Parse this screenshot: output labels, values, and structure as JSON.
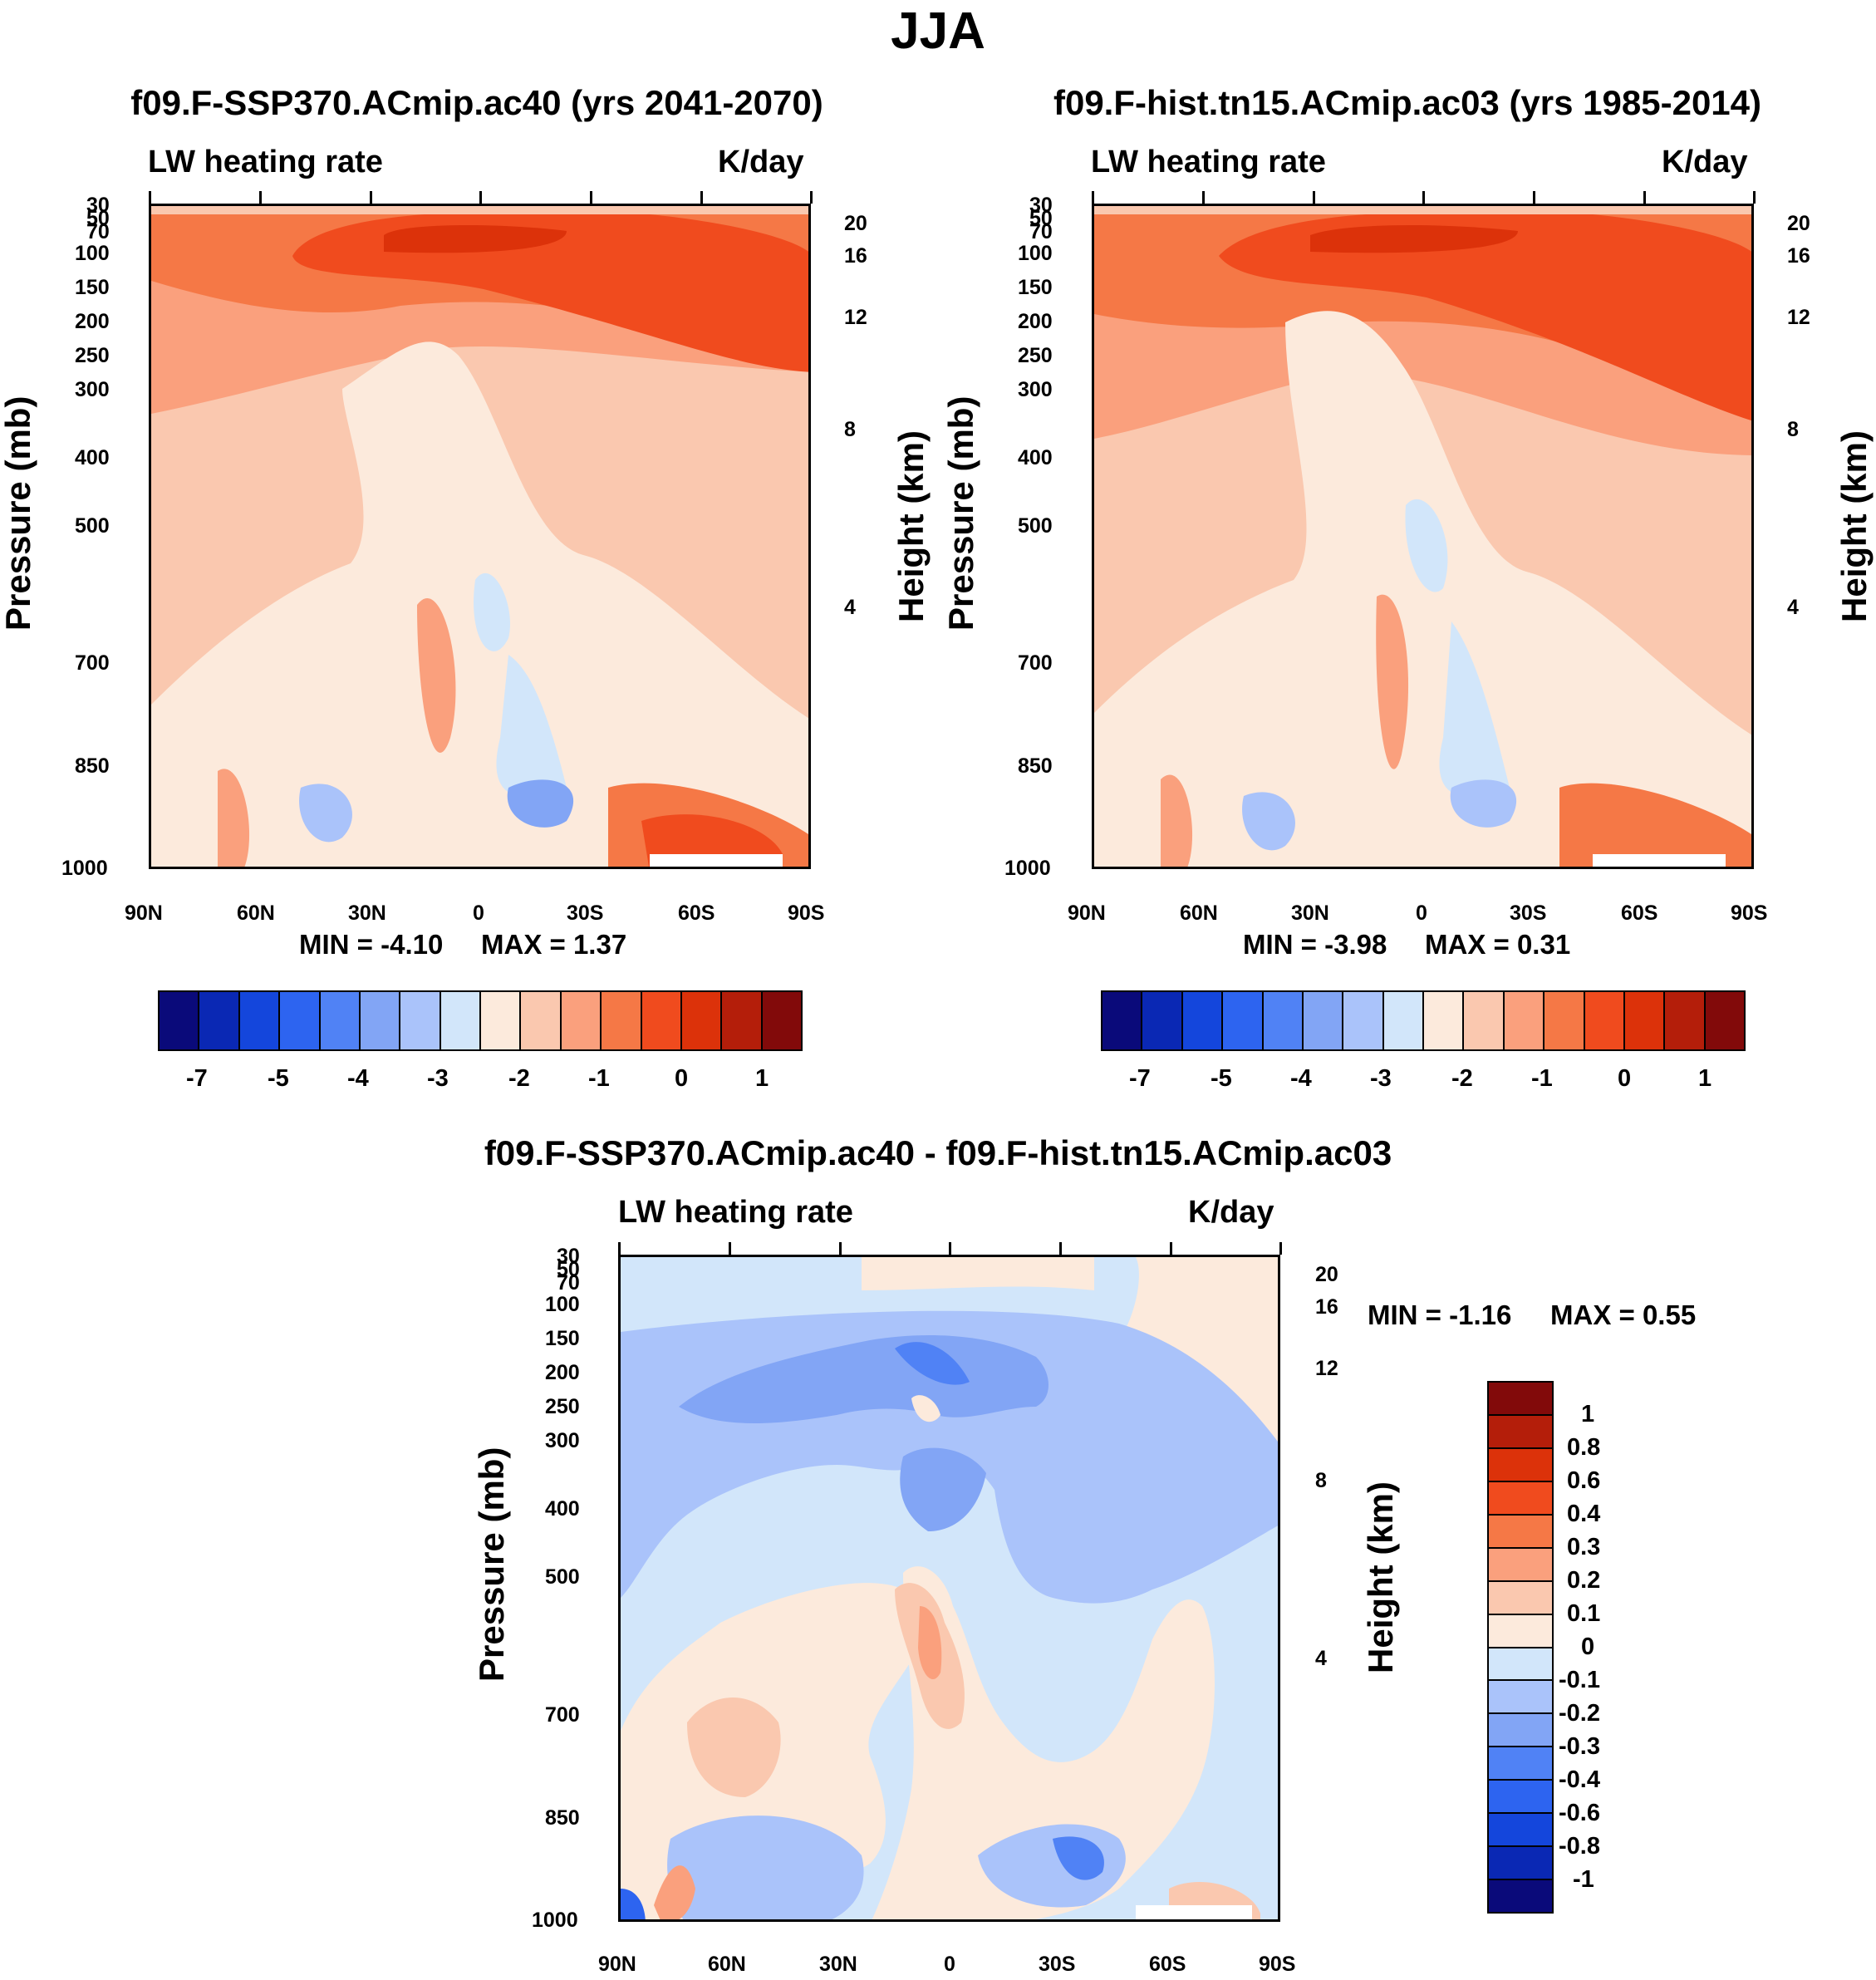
{
  "suptitle": "JJA",
  "colors": {
    "seq": [
      "#0a0a7a",
      "#0a28b4",
      "#1446dc",
      "#2d64f0",
      "#5082f5",
      "#82a5f5",
      "#aac3fa",
      "#d2e6fa",
      "#fceadc",
      "#fac8af",
      "#faa07d",
      "#f57846",
      "#f04b1e",
      "#dc320a",
      "#b41e0a",
      "#820a0a"
    ]
  },
  "chart_data": [
    {
      "type": "contour",
      "title": "f09.F-SSP370.ACmip.ac40 (yrs 2041-2070)",
      "left_label": "LW heating rate",
      "right_label": "K/day",
      "ylabel": "Pressure (mb)",
      "ylabel_right": "Height (km)",
      "x_ticks": [
        "90N",
        "60N",
        "30N",
        "0",
        "30S",
        "60S",
        "90S"
      ],
      "y_ticks": [
        "30",
        "50",
        "70",
        "100",
        "150",
        "200",
        "250",
        "300",
        "400",
        "500",
        "700",
        "850",
        "1000"
      ],
      "y_ticks_right": [
        "20",
        "16",
        "12",
        "8",
        "4"
      ],
      "min_label": "MIN =  -4.10",
      "max_label": "MAX =   1.37",
      "min": -4.1,
      "max": 1.37,
      "colorbar_labels": [
        "-7",
        "-5",
        "-4",
        "-3",
        "-2",
        "-1",
        "0",
        "1"
      ]
    },
    {
      "type": "contour",
      "title": "f09.F-hist.tn15.ACmip.ac03 (yrs 1985-2014)",
      "left_label": "LW heating rate",
      "right_label": "K/day",
      "ylabel": "Pressure (mb)",
      "ylabel_right": "Height (km)",
      "x_ticks": [
        "90N",
        "60N",
        "30N",
        "0",
        "30S",
        "60S",
        "90S"
      ],
      "y_ticks": [
        "30",
        "50",
        "70",
        "100",
        "150",
        "200",
        "250",
        "300",
        "400",
        "500",
        "700",
        "850",
        "1000"
      ],
      "y_ticks_right": [
        "20",
        "16",
        "12",
        "8",
        "4"
      ],
      "min_label": "MIN =  -3.98",
      "max_label": "MAX =   0.31",
      "min": -3.98,
      "max": 0.31,
      "colorbar_labels": [
        "-7",
        "-5",
        "-4",
        "-3",
        "-2",
        "-1",
        "0",
        "1"
      ]
    },
    {
      "type": "contour",
      "title": "f09.F-SSP370.ACmip.ac40 - f09.F-hist.tn15.ACmip.ac03",
      "left_label": "LW heating rate",
      "right_label": "K/day",
      "ylabel": "Pressure (mb)",
      "ylabel_right": "Height (km)",
      "x_ticks": [
        "90N",
        "60N",
        "30N",
        "0",
        "30S",
        "60S",
        "90S"
      ],
      "y_ticks": [
        "30",
        "50",
        "70",
        "100",
        "150",
        "200",
        "250",
        "300",
        "400",
        "500",
        "700",
        "850",
        "1000"
      ],
      "y_ticks_right": [
        "20",
        "16",
        "12",
        "8",
        "4"
      ],
      "min_label": "MIN =  -1.16",
      "max_label": "MAX =   0.55",
      "min": -1.16,
      "max": 0.55,
      "colorbar_labels": [
        "1",
        "0.8",
        "0.6",
        "0.4",
        "0.3",
        "0.2",
        "0.1",
        "0",
        "-0.1",
        "-0.2",
        "-0.3",
        "-0.4",
        "-0.6",
        "-0.8",
        "-1"
      ]
    }
  ]
}
